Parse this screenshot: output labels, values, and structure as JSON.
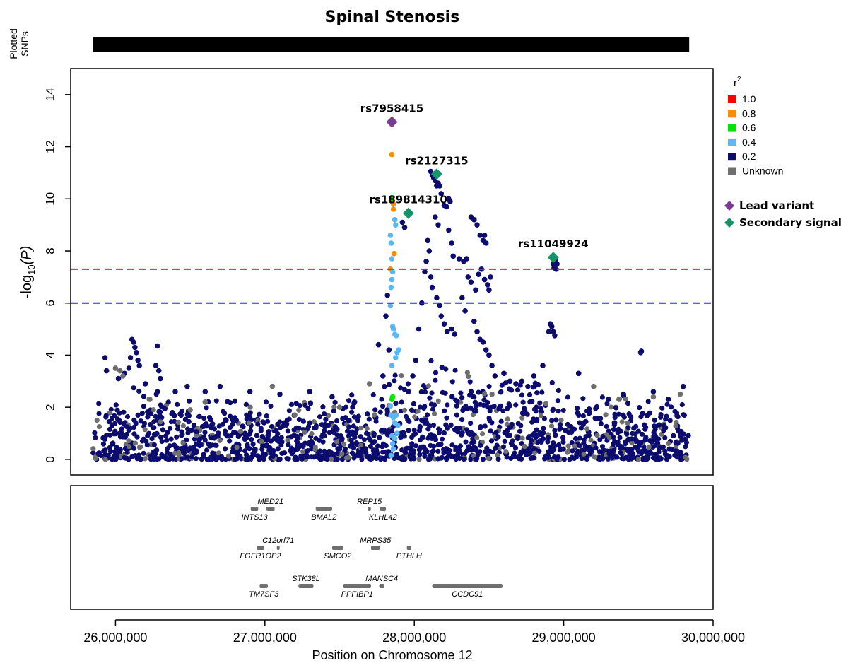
{
  "chart_data": {
    "type": "scatter",
    "title": "Spinal Stenosis",
    "plotted_snps_label_line1": "Plotted",
    "plotted_snps_label_line2": "SNPs",
    "xlabel": "Position on Chromosome 12",
    "ylabel_prefix": "-log",
    "ylabel_sub": "10",
    "ylabel_suffix": "(P)",
    "xlim": [
      25700000,
      30000000
    ],
    "ylim": [
      -0.6,
      15
    ],
    "x_ticks": [
      26000000,
      27000000,
      28000000,
      29000000,
      30000000
    ],
    "x_tick_labels": [
      "26,000,000",
      "27,000,000",
      "28,000,000",
      "29,000,000",
      "30,000,000"
    ],
    "y_ticks": [
      0,
      2,
      4,
      6,
      8,
      10,
      12,
      14
    ],
    "y_tick_labels": [
      "0",
      "2",
      "4",
      "6",
      "8",
      "10",
      "12",
      "14"
    ],
    "thresholds": [
      {
        "name": "genome-wide",
        "value": 7.3,
        "color": "#e8242b"
      },
      {
        "name": "suggestive",
        "value": 6.0,
        "color": "#2a2ee0"
      }
    ],
    "snp_range": [
      25850000,
      29840000
    ],
    "legend": {
      "title_base": "r",
      "title_sup": "2",
      "entries": [
        {
          "label": "1.0",
          "color": "#ff0000"
        },
        {
          "label": "0.8",
          "color": "#ff8c00"
        },
        {
          "label": "0.6",
          "color": "#00e600"
        },
        {
          "label": "0.4",
          "color": "#5bb8f5"
        },
        {
          "label": "0.2",
          "color": "#0c0c6e"
        },
        {
          "label": "Unknown",
          "color": "#6e6e6e"
        }
      ],
      "markers": [
        {
          "label": "Lead variant",
          "color": "#7d3c98"
        },
        {
          "label": "Secondary signal",
          "color": "#16956a"
        }
      ]
    },
    "highlighted": [
      {
        "id": "rs7958415",
        "x": 27850000,
        "y": 12.95,
        "kind": "lead"
      },
      {
        "id": "rs2127315",
        "x": 28150000,
        "y": 10.95,
        "kind": "secondary"
      },
      {
        "id": "rs189814310",
        "x": 27960000,
        "y": 9.45,
        "kind": "secondary"
      },
      {
        "id": "rs11049924",
        "x": 28930000,
        "y": 7.75,
        "kind": "secondary"
      }
    ],
    "points": [
      [
        27850000,
        12.85,
        0.8
      ],
      [
        27850000,
        11.7,
        0.8
      ],
      [
        27860000,
        9.8,
        0.8
      ],
      [
        27860000,
        9.6,
        0.8
      ],
      [
        27865000,
        7.9,
        0.8
      ],
      [
        27840000,
        7.3,
        0.8
      ],
      [
        27850000,
        10.05,
        0.6
      ],
      [
        27850000,
        9.9,
        0.6
      ],
      [
        27855000,
        2.4,
        0.6
      ],
      [
        27850000,
        2.3,
        0.6
      ],
      [
        27870000,
        9.2,
        0.4
      ],
      [
        27875000,
        9.0,
        0.4
      ],
      [
        27840000,
        8.6,
        0.4
      ],
      [
        27845000,
        8.3,
        0.4
      ],
      [
        27850000,
        7.7,
        0.4
      ],
      [
        27855000,
        7.2,
        0.4
      ],
      [
        27850000,
        6.9,
        0.4
      ],
      [
        27845000,
        6.6,
        0.4
      ],
      [
        27840000,
        5.9,
        0.4
      ],
      [
        27855000,
        5.1,
        0.4
      ],
      [
        27860000,
        5.0,
        0.4
      ],
      [
        27870000,
        4.8,
        0.4
      ],
      [
        27880000,
        4.75,
        0.4
      ],
      [
        27885000,
        4.1,
        0.4
      ],
      [
        27895000,
        4.2,
        0.4
      ],
      [
        27875000,
        3.9,
        0.4
      ],
      [
        27850000,
        3.6,
        0.4
      ],
      [
        27840000,
        2.05,
        0.4
      ],
      [
        27845000,
        1.7,
        0.4
      ],
      [
        27860000,
        1.6,
        0.4
      ],
      [
        27870000,
        1.4,
        0.4
      ],
      [
        27880000,
        1.7,
        0.4
      ],
      [
        27890000,
        1.3,
        0.4
      ],
      [
        27850000,
        0.9,
        0.4
      ],
      [
        27855000,
        0.6,
        0.4
      ],
      [
        27860000,
        0.4,
        0.4
      ],
      [
        27845000,
        0.15,
        0.4
      ],
      [
        27870000,
        0.8,
        0.4
      ],
      [
        27885000,
        1.0,
        0.4
      ],
      [
        28110000,
        11.05,
        0.2
      ],
      [
        28120000,
        10.9,
        0.2
      ],
      [
        28130000,
        10.8,
        0.2
      ],
      [
        28140000,
        10.7,
        0.2
      ],
      [
        28150000,
        10.5,
        0.2
      ],
      [
        28160000,
        10.6,
        0.2
      ],
      [
        28170000,
        10.5,
        0.2
      ],
      [
        28180000,
        10.2,
        0.2
      ],
      [
        28200000,
        9.75,
        0.2
      ],
      [
        28215000,
        9.7,
        0.2
      ],
      [
        28230000,
        10.0,
        0.2
      ],
      [
        28240000,
        9.9,
        0.2
      ],
      [
        28140000,
        9.3,
        0.2
      ],
      [
        28160000,
        9.0,
        0.2
      ],
      [
        28230000,
        8.8,
        0.2
      ],
      [
        28250000,
        8.3,
        0.2
      ],
      [
        28260000,
        7.8,
        0.2
      ],
      [
        28090000,
        8.4,
        0.2
      ],
      [
        28100000,
        8.0,
        0.2
      ],
      [
        28080000,
        7.6,
        0.2
      ],
      [
        28070000,
        7.2,
        0.2
      ],
      [
        28110000,
        7.0,
        0.2
      ],
      [
        28120000,
        6.6,
        0.2
      ],
      [
        28150000,
        6.2,
        0.2
      ],
      [
        28170000,
        5.9,
        0.2
      ],
      [
        28180000,
        5.5,
        0.2
      ],
      [
        28200000,
        5.2,
        0.2
      ],
      [
        28220000,
        4.9,
        0.2
      ],
      [
        28250000,
        5.0,
        0.2
      ],
      [
        28270000,
        4.8,
        0.2
      ],
      [
        28050000,
        6.0,
        0.2
      ],
      [
        28030000,
        5.0,
        0.2
      ],
      [
        28010000,
        3.8,
        0.2
      ],
      [
        27990000,
        3.2,
        0.2
      ],
      [
        27960000,
        2.6,
        0.2
      ],
      [
        28300000,
        7.7,
        0.2
      ],
      [
        28330000,
        7.6,
        0.2
      ],
      [
        28350000,
        7.7,
        0.2
      ],
      [
        28380000,
        9.3,
        0.2
      ],
      [
        28400000,
        9.2,
        0.2
      ],
      [
        28420000,
        9.0,
        0.2
      ],
      [
        28440000,
        8.6,
        0.2
      ],
      [
        28460000,
        8.4,
        0.2
      ],
      [
        28470000,
        8.6,
        0.2
      ],
      [
        28480000,
        8.3,
        0.2
      ],
      [
        28360000,
        7.0,
        0.2
      ],
      [
        28380000,
        6.8,
        0.2
      ],
      [
        28410000,
        6.5,
        0.2
      ],
      [
        28430000,
        7.1,
        0.2
      ],
      [
        28450000,
        7.3,
        0.2
      ],
      [
        28470000,
        6.9,
        0.2
      ],
      [
        28490000,
        6.7,
        0.2
      ],
      [
        28500000,
        6.5,
        0.2
      ],
      [
        28510000,
        7.0,
        0.2
      ],
      [
        28320000,
        6.2,
        0.2
      ],
      [
        28340000,
        5.7,
        0.2
      ],
      [
        28400000,
        5.3,
        0.2
      ],
      [
        28420000,
        4.9,
        0.2
      ],
      [
        28440000,
        4.6,
        0.2
      ],
      [
        28460000,
        4.5,
        0.2
      ],
      [
        28480000,
        4.2,
        0.2
      ],
      [
        28500000,
        4.0,
        0.2
      ],
      [
        28520000,
        3.6,
        0.2
      ],
      [
        28540000,
        3.2,
        0.2
      ],
      [
        27760000,
        4.4,
        0.2
      ],
      [
        27790000,
        3.2,
        0.2
      ],
      [
        27810000,
        5.5,
        0.2
      ],
      [
        27820000,
        6.3,
        0.2
      ],
      [
        27830000,
        4.2,
        0.2
      ],
      [
        27800000,
        2.8,
        0.2
      ],
      [
        27920000,
        9.1,
        0.2
      ],
      [
        27935000,
        8.9,
        0.2
      ],
      [
        28380000,
        2.6,
        0.2
      ],
      [
        28600000,
        3.3,
        0.2
      ],
      [
        28640000,
        3.0,
        0.2
      ],
      [
        28680000,
        2.9,
        0.2
      ],
      [
        28720000,
        3.0,
        0.2
      ],
      [
        28760000,
        2.8,
        0.2
      ],
      [
        28800000,
        3.2,
        0.2
      ],
      [
        28860000,
        3.6,
        0.2
      ],
      [
        28900000,
        4.9,
        0.2
      ],
      [
        28910000,
        5.2,
        0.2
      ],
      [
        28920000,
        5.1,
        0.2
      ],
      [
        28930000,
        4.9,
        0.2
      ],
      [
        28940000,
        4.75,
        0.2
      ],
      [
        28930000,
        7.5,
        0.2
      ],
      [
        28935000,
        7.35,
        0.2
      ],
      [
        28945000,
        7.6,
        0.2
      ],
      [
        28955000,
        7.5,
        0.2
      ],
      [
        28950000,
        7.3,
        0.2
      ],
      [
        29100000,
        3.3,
        0.2
      ],
      [
        29520000,
        4.15,
        0.2
      ],
      [
        29515000,
        4.1,
        0.2
      ],
      [
        29300000,
        2.3,
        0.2
      ],
      [
        29400000,
        2.5,
        0.2
      ],
      [
        29600000,
        2.6,
        0.2
      ],
      [
        29700000,
        2.3,
        0.2
      ],
      [
        29800000,
        2.8,
        0.2
      ],
      [
        26110000,
        4.6,
        0.2
      ],
      [
        26120000,
        4.5,
        0.2
      ],
      [
        26130000,
        4.3,
        0.2
      ],
      [
        26140000,
        4.1,
        0.2
      ],
      [
        26100000,
        3.9,
        0.2
      ],
      [
        26150000,
        3.8,
        0.2
      ],
      [
        26160000,
        3.6,
        0.2
      ],
      [
        26090000,
        3.5,
        0.2
      ],
      [
        26060000,
        3.3,
        0.2
      ],
      [
        26280000,
        4.35,
        0.2
      ],
      [
        26270000,
        3.6,
        0.2
      ],
      [
        26290000,
        3.4,
        0.2
      ],
      [
        26300000,
        3.1,
        0.2
      ],
      [
        25930000,
        3.9,
        0.2
      ],
      [
        25940000,
        3.4,
        0.2
      ],
      [
        26020000,
        3.1,
        0.2
      ],
      [
        26200000,
        2.9,
        0.2
      ],
      [
        26400000,
        2.6,
        0.2
      ],
      [
        26480000,
        2.8,
        0.2
      ],
      [
        26600000,
        2.6,
        0.2
      ],
      [
        26700000,
        2.8,
        0.2
      ],
      [
        26900000,
        2.6,
        0.2
      ],
      [
        27100000,
        2.5,
        0.2
      ],
      [
        27300000,
        2.6,
        0.2
      ],
      [
        27450000,
        2.4,
        0.2
      ],
      [
        27600000,
        2.2,
        0.2
      ],
      [
        26000000,
        3.5,
        null
      ],
      [
        26030000,
        3.4,
        null
      ],
      [
        26050000,
        3.2,
        null
      ],
      [
        26230000,
        2.3,
        null
      ],
      [
        26600000,
        2.2,
        null
      ],
      [
        27050000,
        2.8,
        null
      ],
      [
        27500000,
        2.0,
        null
      ],
      [
        27700000,
        2.9,
        null
      ],
      [
        28520000,
        2.5,
        null
      ],
      [
        29200000,
        2.8,
        null
      ],
      [
        29370000,
        2.3,
        null
      ],
      [
        29600000,
        2.4,
        null
      ],
      [
        29780000,
        2.5,
        null
      ],
      [
        26500000,
        1.9,
        null
      ],
      [
        27200000,
        1.7,
        null
      ]
    ],
    "background_bands": [
      [
        25850000,
        26050000,
        1.8,
        2.4
      ],
      [
        26050000,
        26350000,
        2.1,
        2.8
      ],
      [
        26350000,
        27000000,
        1.8,
        2.3
      ],
      [
        27000000,
        27500000,
        1.7,
        2.2
      ],
      [
        27500000,
        27800000,
        1.8,
        2.5
      ],
      [
        27800000,
        28100000,
        2.2,
        3.4
      ],
      [
        28100000,
        28600000,
        2.6,
        3.8
      ],
      [
        28600000,
        29000000,
        2.3,
        3.0
      ],
      [
        29000000,
        29500000,
        1.9,
        2.5
      ],
      [
        29500000,
        29840000,
        1.8,
        2.3
      ]
    ],
    "genes": [
      {
        "name": "MED21",
        "start": 27010000,
        "end": 27065000,
        "row": 0,
        "label_pos": "above"
      },
      {
        "name": "INTS13",
        "start": 26905000,
        "end": 26955000,
        "row": 0,
        "label_pos": "below"
      },
      {
        "name": "BMAL2",
        "start": 27340000,
        "end": 27450000,
        "row": 0,
        "label_pos": "below"
      },
      {
        "name": "REP15",
        "start": 27690000,
        "end": 27705000,
        "row": 0,
        "label_pos": "above"
      },
      {
        "name": "KLHL42",
        "start": 27770000,
        "end": 27810000,
        "row": 0,
        "label_pos": "below"
      },
      {
        "name": "C12orf71",
        "start": 27080000,
        "end": 27090000,
        "row": 1,
        "label_pos": "above"
      },
      {
        "name": "FGFR1OP2",
        "start": 26945000,
        "end": 26995000,
        "row": 1,
        "label_pos": "below"
      },
      {
        "name": "SMCO2",
        "start": 27450000,
        "end": 27525000,
        "row": 1,
        "label_pos": "below"
      },
      {
        "name": "MRPS35",
        "start": 27710000,
        "end": 27770000,
        "row": 1,
        "label_pos": "above"
      },
      {
        "name": "PTHLH",
        "start": 27950000,
        "end": 27980000,
        "row": 1,
        "label_pos": "below"
      },
      {
        "name": "STK38L",
        "start": 27225000,
        "end": 27325000,
        "row": 2,
        "label_pos": "above"
      },
      {
        "name": "TM7SF3",
        "start": 26965000,
        "end": 27020000,
        "row": 2,
        "label_pos": "below"
      },
      {
        "name": "MANSC4",
        "start": 27765000,
        "end": 27800000,
        "row": 2,
        "label_pos": "above"
      },
      {
        "name": "PPFIBP1",
        "start": 27525000,
        "end": 27710000,
        "row": 2,
        "label_pos": "below"
      },
      {
        "name": "CCDC91",
        "start": 28120000,
        "end": 28590000,
        "row": 2,
        "label_pos": "below"
      }
    ]
  }
}
